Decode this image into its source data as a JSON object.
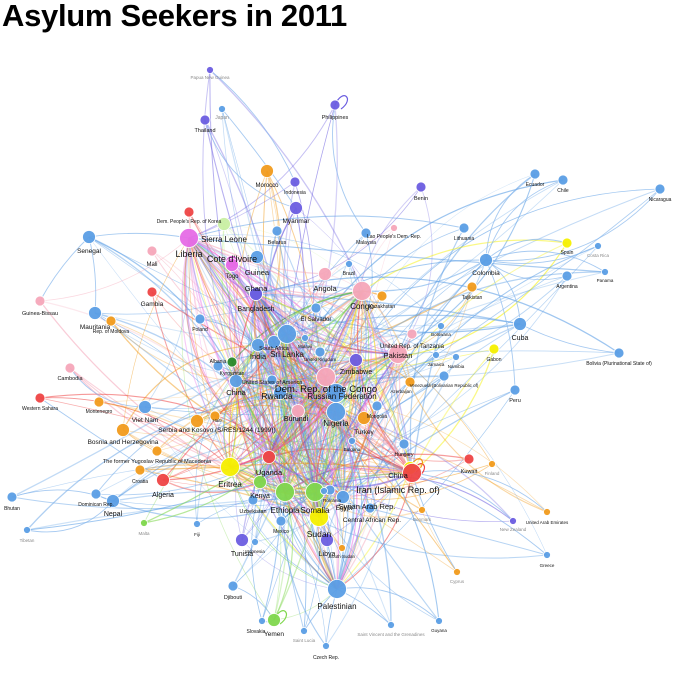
{
  "title": "Asylum Seekers in 2011",
  "colors": {
    "blue": "#5b9ee5",
    "blue_edge": "#8ab8ec",
    "purple": "#6b5de0",
    "magenta": "#e66be6",
    "pink": "#f5a6b9",
    "red": "#ee4444",
    "orange": "#f19b1c",
    "yellow": "#f5f000",
    "green": "#7fd74d",
    "lightgreen": "#c9efa3",
    "darkgreen": "#2a8a2a"
  },
  "nodes": [
    {
      "id": "png",
      "label": "Papua New Guinea",
      "c": "purple",
      "s": "tiny"
    },
    {
      "id": "japan",
      "label": "Japan",
      "c": "blue",
      "s": "tiny"
    },
    {
      "id": "thailand",
      "label": "Thailand",
      "c": "purple",
      "s": "small"
    },
    {
      "id": "philippines",
      "label": "Philippines",
      "c": "purple",
      "s": "small"
    },
    {
      "id": "morocco",
      "label": "Morocco",
      "c": "orange",
      "s": "med"
    },
    {
      "id": "indonesia",
      "label": "Indonesia",
      "c": "purple",
      "s": "small"
    },
    {
      "id": "benin",
      "label": "Benin",
      "c": "purple",
      "s": "small"
    },
    {
      "id": "myanmar",
      "label": "Myanmar",
      "c": "purple",
      "s": "med"
    },
    {
      "id": "dprk",
      "label": "Dem. People's Rep. of Korea",
      "c": "red",
      "s": "small"
    },
    {
      "id": "ecuador",
      "label": "Ecuador",
      "c": "blue",
      "s": "small"
    },
    {
      "id": "chile",
      "label": "Chile",
      "c": "blue",
      "s": "small"
    },
    {
      "id": "nicaragua",
      "label": "Nicaragua",
      "c": "blue",
      "s": "small"
    },
    {
      "id": "senegal",
      "label": "Senegal",
      "c": "blue",
      "s": "med"
    },
    {
      "id": "sierraleone",
      "label": "Sierra Leone",
      "c": "lightgreen",
      "s": "med"
    },
    {
      "id": "liberia",
      "label": "Liberia",
      "c": "magenta",
      "s": "big"
    },
    {
      "id": "cotedivoire",
      "label": "Cote d'Ivoire",
      "c": "magenta",
      "s": "med"
    },
    {
      "id": "belarus",
      "label": "Belarus",
      "c": "blue",
      "s": "small"
    },
    {
      "id": "malaysia",
      "label": "Malaysia",
      "c": "blue",
      "s": "small"
    },
    {
      "id": "laos",
      "label": "Lao People's Dem. Rep.",
      "c": "pink",
      "s": "tiny"
    },
    {
      "id": "lithuania",
      "label": "Lithuania",
      "c": "blue",
      "s": "small"
    },
    {
      "id": "mali",
      "label": "Mali",
      "c": "pink",
      "s": "small"
    },
    {
      "id": "togo",
      "label": "Togo",
      "c": "magenta",
      "s": "med"
    },
    {
      "id": "guinea",
      "label": "Guinea",
      "c": "blue",
      "s": "med"
    },
    {
      "id": "ghana",
      "label": "Ghana",
      "c": "blue",
      "s": "med"
    },
    {
      "id": "brazil",
      "label": "Brazil",
      "c": "blue",
      "s": "tiny"
    },
    {
      "id": "colombia",
      "label": "Colombia",
      "c": "blue",
      "s": "med"
    },
    {
      "id": "spain",
      "label": "Spain",
      "c": "yellow",
      "s": "small"
    },
    {
      "id": "costarica",
      "label": "Costa Rica",
      "c": "blue",
      "s": "tiny"
    },
    {
      "id": "angola",
      "label": "Angola",
      "c": "pink",
      "s": "med"
    },
    {
      "id": "tajikistan",
      "label": "Tajikistan",
      "c": "orange",
      "s": "small"
    },
    {
      "id": "argentina",
      "label": "Argentina",
      "c": "blue",
      "s": "small"
    },
    {
      "id": "panama",
      "label": "Panama",
      "c": "blue",
      "s": "tiny"
    },
    {
      "id": "guineabissau",
      "label": "Guinea-Bissau",
      "c": "pink",
      "s": "small"
    },
    {
      "id": "gambia",
      "label": "Gambia",
      "c": "red",
      "s": "small"
    },
    {
      "id": "bangladesh",
      "label": "Bangladesh",
      "c": "purple",
      "s": "med"
    },
    {
      "id": "congo",
      "label": "Congo",
      "c": "pink",
      "s": "big"
    },
    {
      "id": "kazakhstan",
      "label": "Kazakhstan",
      "c": "orange",
      "s": "small"
    },
    {
      "id": "mauritania",
      "label": "Mauritania",
      "c": "blue",
      "s": "med"
    },
    {
      "id": "moldova",
      "label": "Rep. of Moldova",
      "c": "orange",
      "s": "small"
    },
    {
      "id": "poland",
      "label": "Poland",
      "c": "blue",
      "s": "small"
    },
    {
      "id": "elsalvador",
      "label": "El Salvador",
      "c": "blue",
      "s": "small"
    },
    {
      "id": "cuba",
      "label": "Cuba",
      "c": "blue",
      "s": "med"
    },
    {
      "id": "botswana",
      "label": "Botswana",
      "c": "blue",
      "s": "tiny"
    },
    {
      "id": "tanzania",
      "label": "United Rep. of Tanzania",
      "c": "pink",
      "s": "small"
    },
    {
      "id": "southafrica",
      "label": "South Africa",
      "c": "blue",
      "s": "med"
    },
    {
      "id": "srilanka",
      "label": "Sri Lanka",
      "c": "blue",
      "s": "big"
    },
    {
      "id": "malawi",
      "label": "Malawi",
      "c": "blue",
      "s": "tiny"
    },
    {
      "id": "pakistan",
      "label": "Pakistan",
      "c": "pink",
      "s": "big"
    },
    {
      "id": "jamaica",
      "label": "Jamaica",
      "c": "blue",
      "s": "tiny"
    },
    {
      "id": "gabon",
      "label": "Gabon",
      "c": "yellow",
      "s": "small"
    },
    {
      "id": "bolivia",
      "label": "Bolivia (Plurinational State of)",
      "c": "blue",
      "s": "small"
    },
    {
      "id": "india",
      "label": "India",
      "c": "blue",
      "s": "med"
    },
    {
      "id": "uk",
      "label": "United Kingdom",
      "c": "blue",
      "s": "small"
    },
    {
      "id": "cambodia",
      "label": "Cambodia",
      "c": "pink",
      "s": "small"
    },
    {
      "id": "ouganda",
      "label": "Kyrgyzstan",
      "c": "darkgreen",
      "s": "small"
    },
    {
      "id": "albania",
      "label": "Albania",
      "c": "blue",
      "s": "small"
    },
    {
      "id": "namibia",
      "label": "Namibia",
      "c": "blue",
      "s": "tiny"
    },
    {
      "id": "zimbabwe",
      "label": "Zimbabwe",
      "c": "purple",
      "s": "med"
    },
    {
      "id": "venezuela",
      "label": "Venezuela (Bolivarian Republic of)",
      "c": "blue",
      "s": "small"
    },
    {
      "id": "westernsahara",
      "label": "Western Sahara",
      "c": "red",
      "s": "small"
    },
    {
      "id": "montenegro",
      "label": "Montenegro",
      "c": "orange",
      "s": "small"
    },
    {
      "id": "china",
      "label": "China",
      "c": "blue",
      "s": "med"
    },
    {
      "id": "usa",
      "label": "United States of America",
      "c": "blue",
      "s": "small"
    },
    {
      "id": "drc",
      "label": "Dem. Rep. of the Congo",
      "c": "pink",
      "s": "big"
    },
    {
      "id": "russia",
      "label": "Russian Federation",
      "c": "blue",
      "s": "big"
    },
    {
      "id": "azerbaijan",
      "label": "Azerbaijan",
      "c": "orange",
      "s": "small"
    },
    {
      "id": "peru",
      "label": "Peru",
      "c": "blue",
      "s": "small"
    },
    {
      "id": "rwanda",
      "label": "Rwanda",
      "c": "blue",
      "s": "med"
    },
    {
      "id": "burundi",
      "label": "Burundi",
      "c": "pink",
      "s": "med"
    },
    {
      "id": "mongolia",
      "label": "Mongolia",
      "c": "blue",
      "s": "small"
    },
    {
      "id": "vietnam",
      "label": "Viet Nam",
      "c": "blue",
      "s": "med"
    },
    {
      "id": "haiti",
      "label": "Haiti",
      "c": "orange",
      "s": "small"
    },
    {
      "id": "nigeria",
      "label": "Nigeria",
      "c": "blue",
      "s": "big"
    },
    {
      "id": "turkey",
      "label": "Turkey",
      "c": "orange",
      "s": "med"
    },
    {
      "id": "serbia",
      "label": "Serbia and Kosovo (S/RES/1244 (1999))",
      "c": "orange",
      "s": "med"
    },
    {
      "id": "bosnia",
      "label": "Bosnia and Herzegovina",
      "c": "orange",
      "s": "med"
    },
    {
      "id": "bulgaria",
      "label": "Bulgaria",
      "c": "blue",
      "s": "tiny"
    },
    {
      "id": "hungary",
      "label": "Hungary",
      "c": "blue",
      "s": "small"
    },
    {
      "id": "macedonia",
      "label": "The former Yugoslav Republic of Macedonia",
      "c": "orange",
      "s": "small"
    },
    {
      "id": "uganda",
      "label": "Uganda",
      "c": "red",
      "s": "med"
    },
    {
      "id": "china2",
      "label": "China",
      "c": "yellow",
      "s": "med"
    },
    {
      "id": "kuwait",
      "label": "Kuwait",
      "c": "red",
      "s": "small"
    },
    {
      "id": "finland",
      "label": "Finland",
      "c": "orange",
      "s": "tiny"
    },
    {
      "id": "croatia",
      "label": "Croatia",
      "c": "orange",
      "s": "small"
    },
    {
      "id": "eritrea",
      "label": "Eritrea",
      "c": "yellow",
      "s": "big"
    },
    {
      "id": "algeria",
      "label": "Algeria",
      "c": "red",
      "s": "med"
    },
    {
      "id": "kenya",
      "label": "Kenya",
      "c": "green",
      "s": "med"
    },
    {
      "id": "iran",
      "label": "Iran (Islamic Rep. of)",
      "c": "red",
      "s": "big"
    },
    {
      "id": "bhutan",
      "label": "Bhutan",
      "c": "blue",
      "s": "small"
    },
    {
      "id": "dominican",
      "label": "Dominican Rep.",
      "c": "blue",
      "s": "small"
    },
    {
      "id": "nepal",
      "label": "Nepal",
      "c": "blue",
      "s": "med"
    },
    {
      "id": "uzbekistan",
      "label": "Uzbekistan",
      "c": "blue",
      "s": "small"
    },
    {
      "id": "ethiopia",
      "label": "Ethiopia",
      "c": "green",
      "s": "big"
    },
    {
      "id": "somalia",
      "label": "Somalia",
      "c": "green",
      "s": "big"
    },
    {
      "id": "syria",
      "label": "Syrian Arab Rep.",
      "c": "blue",
      "s": "med"
    },
    {
      "id": "egypt",
      "label": "Egypt",
      "c": "blue",
      "s": "small"
    },
    {
      "id": "romania",
      "label": "Romania",
      "c": "blue",
      "s": "tiny"
    },
    {
      "id": "sudan",
      "label": "Sudan",
      "c": "yellow",
      "s": "big"
    },
    {
      "id": "car",
      "label": "Central African Rep.",
      "c": "blue",
      "s": "small"
    },
    {
      "id": "denmark",
      "label": "Denmark",
      "c": "orange",
      "s": "tiny"
    },
    {
      "id": "uae",
      "label": "United Arab Emirates",
      "c": "orange",
      "s": "tiny"
    },
    {
      "id": "newzealand",
      "label": "New Zealand",
      "c": "purple",
      "s": "tiny"
    },
    {
      "id": "greece",
      "label": "Greece",
      "c": "blue",
      "s": "tiny"
    },
    {
      "id": "titania",
      "label": "Tibetan",
      "c": "blue",
      "s": "tiny"
    },
    {
      "id": "malta",
      "label": "Malta",
      "c": "green",
      "s": "tiny"
    },
    {
      "id": "fiji",
      "label": "Fiji",
      "c": "blue",
      "s": "tiny"
    },
    {
      "id": "mexico",
      "label": "Mexico",
      "c": "blue",
      "s": "small"
    },
    {
      "id": "tunisia",
      "label": "Tunisia",
      "c": "purple",
      "s": "med"
    },
    {
      "id": "indonesia2",
      "label": "Indonesia",
      "c": "blue",
      "s": "tiny"
    },
    {
      "id": "libya",
      "label": "Libya",
      "c": "purple",
      "s": "med"
    },
    {
      "id": "southsudan",
      "label": "South Sudan",
      "c": "orange",
      "s": "tiny"
    },
    {
      "id": "djibouti",
      "label": "Djibouti",
      "c": "blue",
      "s": "small"
    },
    {
      "id": "cyprus",
      "label": "Cyprus",
      "c": "orange",
      "s": "tiny"
    },
    {
      "id": "palestinian",
      "label": "Palestinian",
      "c": "blue",
      "s": "big"
    },
    {
      "id": "slovakia",
      "label": "Slovakia",
      "c": "blue",
      "s": "tiny"
    },
    {
      "id": "yemen",
      "label": "Yemen",
      "c": "green",
      "s": "med"
    },
    {
      "id": "saintlucia",
      "label": "Saint Lucia",
      "c": "blue",
      "s": "tiny"
    },
    {
      "id": "svg",
      "label": "Saint Vincent and the Grenadines",
      "c": "blue",
      "s": "tiny"
    },
    {
      "id": "guyana",
      "label": "Guyana",
      "c": "blue",
      "s": "tiny"
    },
    {
      "id": "czech",
      "label": "Czech Rep.",
      "c": "blue",
      "s": "tiny"
    }
  ]
}
